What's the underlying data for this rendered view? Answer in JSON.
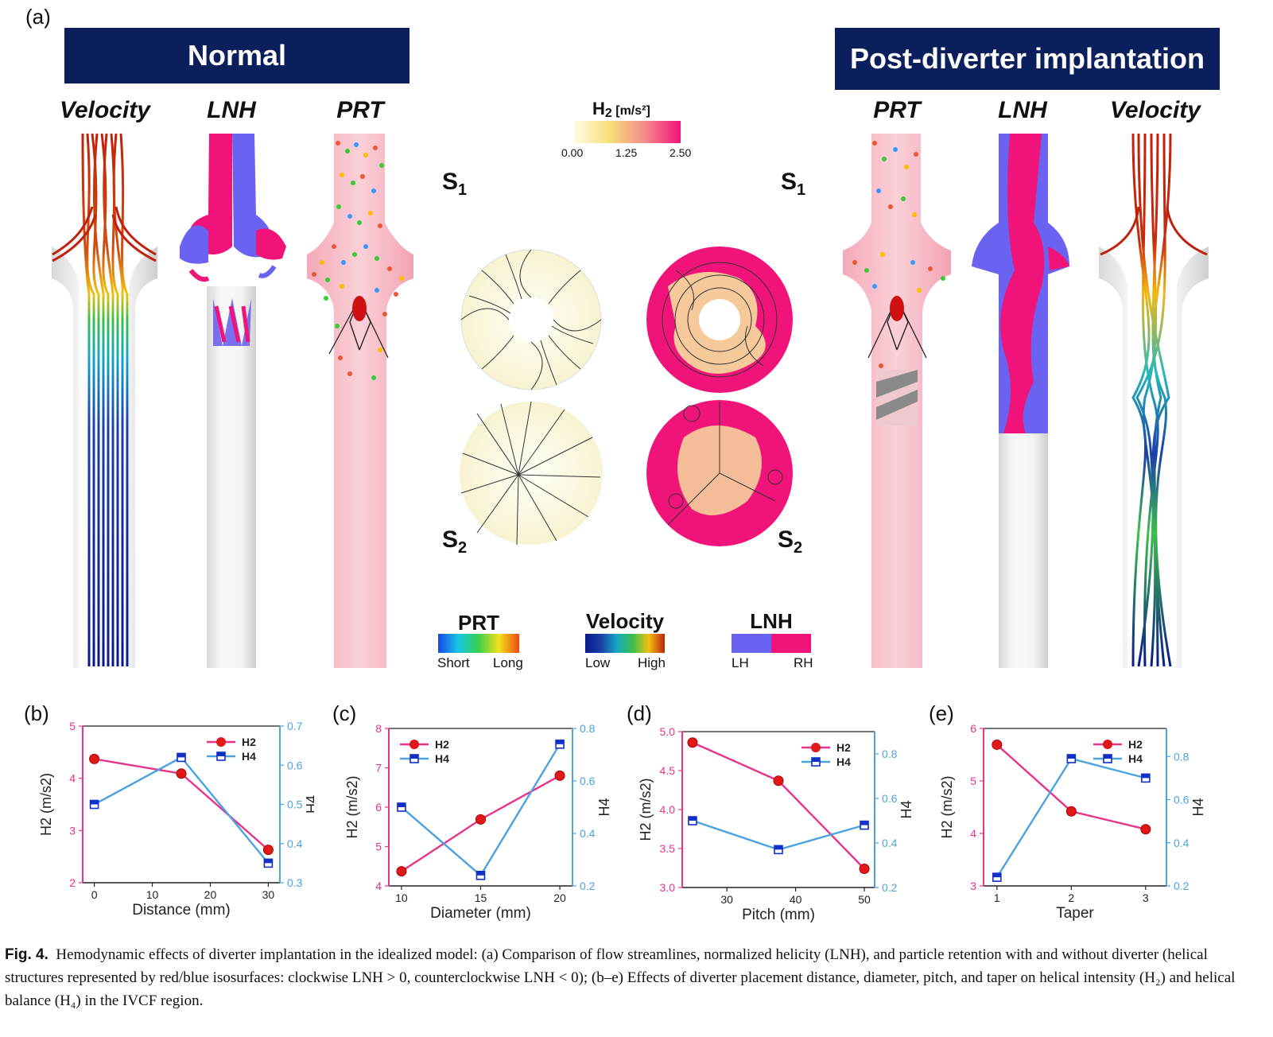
{
  "panel_a": {
    "letter": "(a)",
    "banner_normal": "Normal",
    "banner_post": "Post-diverter implantation",
    "normal_columns": [
      "Velocity",
      "LNH",
      "PRT"
    ],
    "post_columns": [
      "PRT",
      "LNH",
      "Velocity"
    ],
    "h2_legend": {
      "title": "H",
      "sub": "2",
      "unit": " [m/s²]",
      "ticks": [
        "0.00",
        "1.25",
        "2.50"
      ]
    },
    "sections": {
      "s1": {
        "letter": "S",
        "sub": "1"
      },
      "s2": {
        "letter": "S",
        "sub": "2"
      }
    },
    "legends": {
      "prt": {
        "title": "PRT",
        "low": "Short",
        "high": "Long"
      },
      "velocity": {
        "title": "Velocity",
        "low": "Low",
        "high": "High"
      },
      "lnh": {
        "title": "LNH",
        "low": "LH",
        "high": "RH"
      }
    },
    "colors": {
      "banner": "#0b1f5c",
      "lh": "#6a62f0",
      "rh": "#f0147a",
      "prt_tube": "#f7b9c4"
    }
  },
  "chart_data": [
    {
      "letter": "(b)",
      "type": "line",
      "xlabel": "Distance (mm)",
      "ylabel_left": "H2 (m/s2)",
      "ylabel_right": "H4",
      "x": [
        0,
        15,
        30
      ],
      "x_ticks": [
        "0",
        "10",
        "20",
        "30"
      ],
      "x_tick_values": [
        0,
        10,
        20,
        30
      ],
      "xlim": [
        -2,
        32
      ],
      "ylim_left": [
        2,
        5
      ],
      "y_ticks_left": [
        "2",
        "3",
        "4",
        "5"
      ],
      "ylim_right": [
        0.3,
        0.7
      ],
      "y_ticks_right": [
        "0.3",
        "0.4",
        "0.5",
        "0.6",
        "0.7"
      ],
      "legend_position": "top-right",
      "series": [
        {
          "name": "H2",
          "axis": "left",
          "values": [
            4.37,
            4.09,
            2.63
          ],
          "color": "#e8338a"
        },
        {
          "name": "H4",
          "axis": "right",
          "values": [
            0.5,
            0.62,
            0.35
          ],
          "color": "#4aa3e0"
        }
      ]
    },
    {
      "letter": "(c)",
      "type": "line",
      "xlabel": "Diameter (mm)",
      "ylabel_left": "H2 (m/s2)",
      "ylabel_right": "H4",
      "x": [
        10,
        15,
        20
      ],
      "x_ticks": [
        "10",
        "15",
        "20"
      ],
      "x_tick_values": [
        10,
        15,
        20
      ],
      "xlim": [
        9.2,
        20.8
      ],
      "ylim_left": [
        4,
        8
      ],
      "y_ticks_left": [
        "4",
        "5",
        "6",
        "7",
        "8"
      ],
      "ylim_right": [
        0.2,
        0.8
      ],
      "y_ticks_right": [
        "0.2",
        "0.4",
        "0.6",
        "0.8"
      ],
      "legend_position": "top-left",
      "series": [
        {
          "name": "H2",
          "axis": "left",
          "values": [
            4.37,
            5.69,
            6.8
          ],
          "color": "#e8338a"
        },
        {
          "name": "H4",
          "axis": "right",
          "values": [
            0.5,
            0.24,
            0.74
          ],
          "color": "#4aa3e0"
        }
      ]
    },
    {
      "letter": "(d)",
      "type": "line",
      "xlabel": "Pitch (mm)",
      "ylabel_left": "H2 (m/s2)",
      "ylabel_right": "H4",
      "x": [
        25,
        37.5,
        50
      ],
      "x_ticks": [
        "30",
        "40",
        "50"
      ],
      "x_tick_values": [
        30,
        40,
        50
      ],
      "xlim": [
        23.5,
        51.5
      ],
      "ylim_left": [
        3.0,
        5.0
      ],
      "y_ticks_left": [
        "3.0",
        "3.5",
        "4.0",
        "4.5",
        "5.0"
      ],
      "ylim_right": [
        0.2,
        0.9
      ],
      "y_ticks_right": [
        "0.2",
        "0.4",
        "0.6",
        "0.8"
      ],
      "legend_position": "top-right",
      "series": [
        {
          "name": "H2",
          "axis": "left",
          "values": [
            4.86,
            4.37,
            3.24
          ],
          "color": "#e8338a"
        },
        {
          "name": "H4",
          "axis": "right",
          "values": [
            0.5,
            0.37,
            0.48
          ],
          "color": "#4aa3e0"
        }
      ]
    },
    {
      "letter": "(e)",
      "type": "line",
      "xlabel": "Taper",
      "ylabel_left": "H2 (m/s2)",
      "ylabel_right": "H4",
      "x": [
        1,
        2,
        3
      ],
      "x_ticks": [
        "1",
        "2",
        "3"
      ],
      "x_tick_values": [
        1,
        2,
        3
      ],
      "xlim": [
        0.82,
        3.28
      ],
      "ylim_left": [
        3,
        6
      ],
      "y_ticks_left": [
        "3",
        "4",
        "5",
        "6"
      ],
      "ylim_right": [
        0.2,
        0.93
      ],
      "y_ticks_right": [
        "0.2",
        "0.4",
        "0.6",
        "0.8"
      ],
      "legend_position": "top-right",
      "series": [
        {
          "name": "H2",
          "axis": "left",
          "values": [
            5.69,
            4.42,
            4.08
          ],
          "color": "#e8338a"
        },
        {
          "name": "H4",
          "axis": "right",
          "values": [
            0.24,
            0.79,
            0.7
          ],
          "color": "#4aa3e0"
        }
      ]
    }
  ],
  "caption": {
    "label": "Fig. 4.",
    "text": "Hemodynamic effects of diverter implantation in the idealized model: (a) Comparison of flow streamlines, normalized helicity (LNH), and particle retention with and without diverter (helical structures represented by red/blue isosurfaces: clockwise LNH > 0, counterclockwise LNH < 0); (b–e) Effects of diverter placement distance, diameter, pitch, and taper on helical intensity (H₂) and helical balance (H₄) in the IVCF region."
  }
}
